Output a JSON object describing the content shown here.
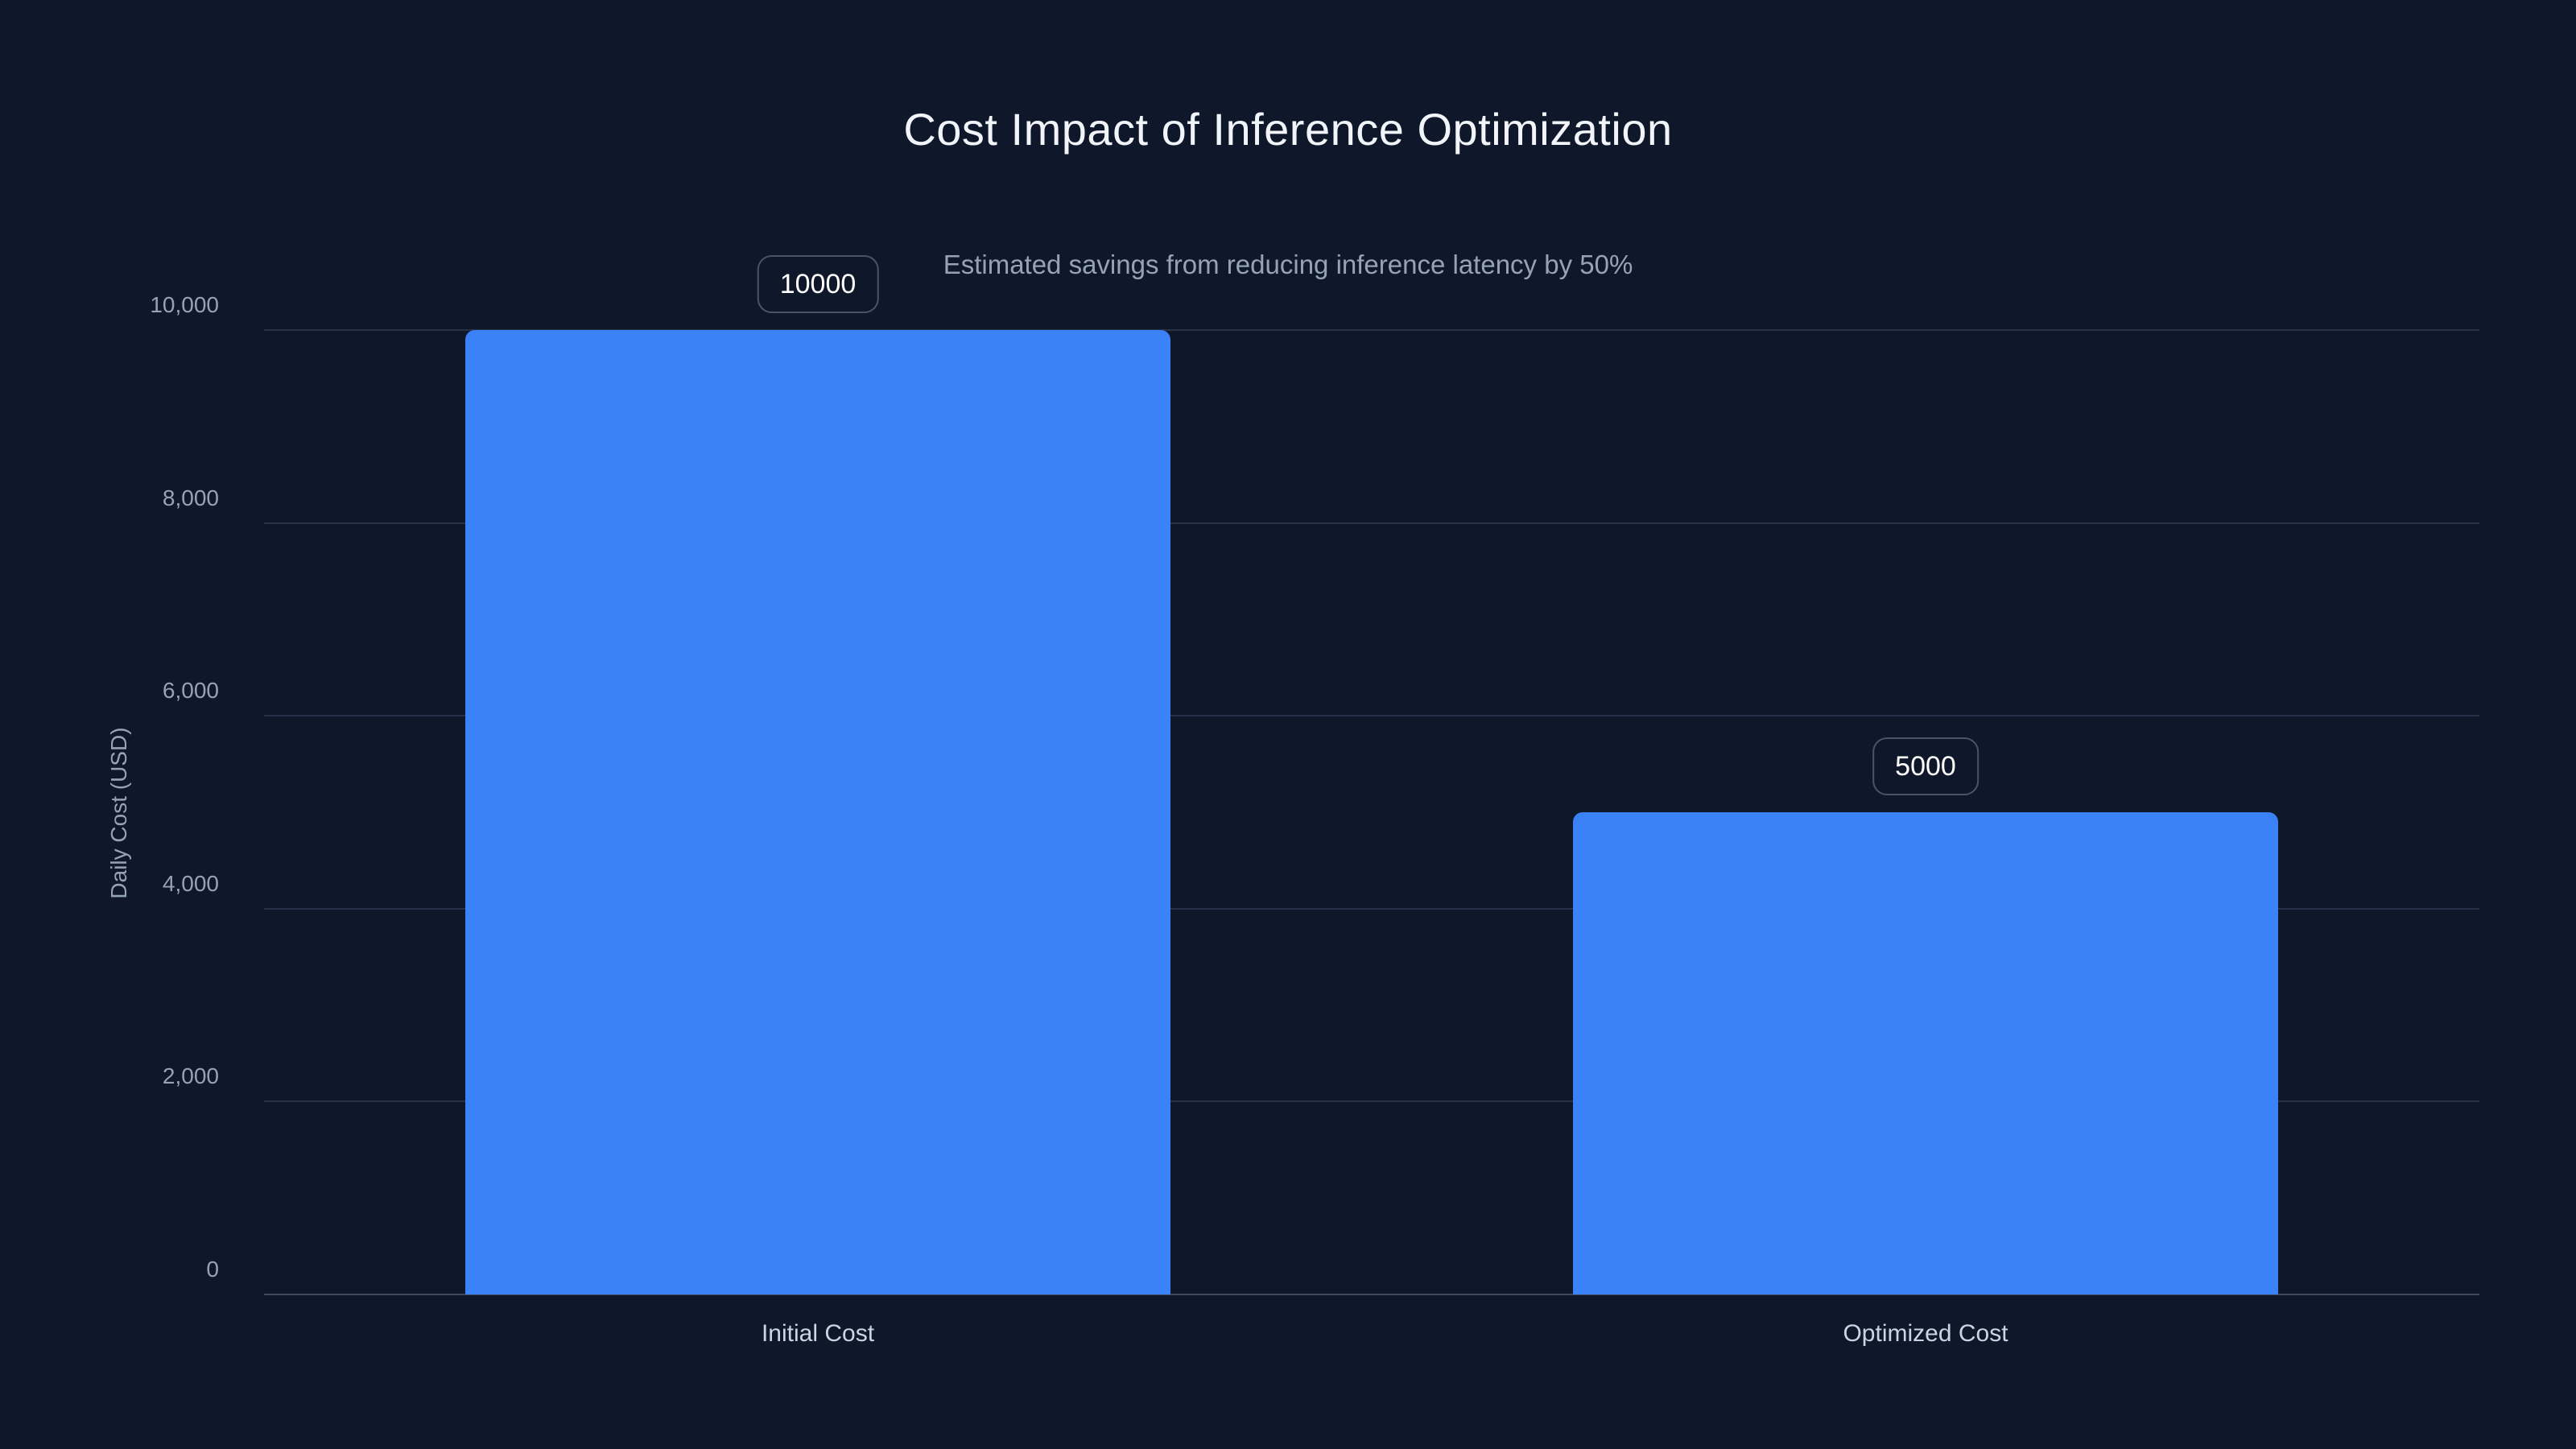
{
  "header": {
    "title": "Cost Impact of Inference Optimization",
    "subtitle": "Estimated savings from reducing inference latency by 50%"
  },
  "chart_data": {
    "type": "bar",
    "title": "Cost Impact of Inference Optimization",
    "subtitle": "Estimated savings from reducing inference latency by 50%",
    "categories": [
      "Initial Cost",
      "Optimized Cost"
    ],
    "values": [
      10000,
      5000
    ],
    "bar_labels": [
      "10000",
      "5000"
    ],
    "xlabel": "",
    "ylabel": "Daily Cost (USD)",
    "ylim": [
      0,
      10000
    ],
    "yticks": [
      0,
      2000,
      4000,
      6000,
      8000,
      10000
    ],
    "ytick_labels": [
      "0",
      "2,000",
      "4,000",
      "6,000",
      "8,000",
      "10,000"
    ],
    "grid": "horizontal-only",
    "legend": "none",
    "colors": {
      "background": "#0f172a",
      "bar": "#3b82f6",
      "grid_line": "#27324a",
      "baseline": "#3a4a63",
      "axis_text": "#94a3b8",
      "category_text": "#cbd5e1",
      "title_text": "#f1f5f9",
      "badge_border": "#475569",
      "badge_text": "#ffffff"
    }
  }
}
